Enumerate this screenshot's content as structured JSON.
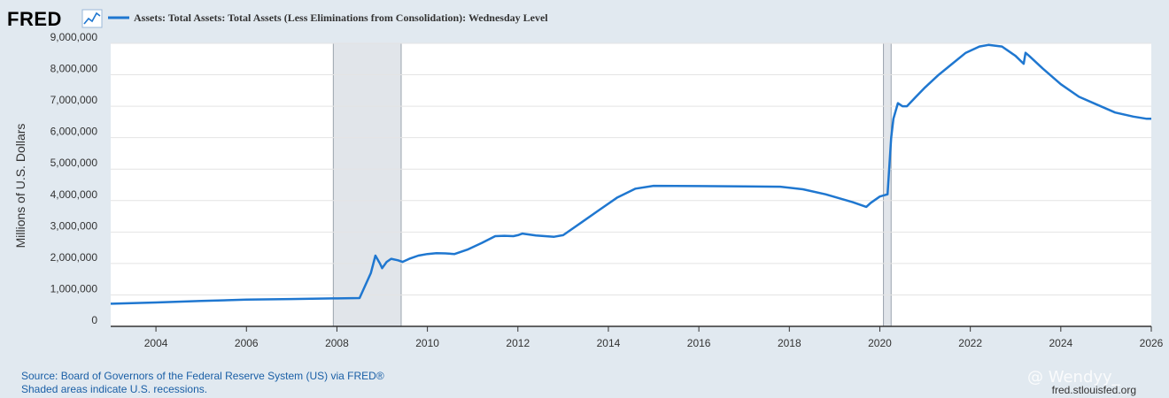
{
  "header": {
    "logo_text": "FRED",
    "logo_icon": "line-graph-icon",
    "legend_label": "Assets: Total Assets: Total Assets (Less Eliminations from Consolidation): Wednesday Level"
  },
  "footer": {
    "source": "Source: Board of Governors of the Federal Reserve System (US) via FRED®",
    "recession_note": "Shaded areas indicate U.S. recessions.",
    "url": "fred.stlouisfed.org",
    "watermark": "@ Wendyy_"
  },
  "colors": {
    "line": "#1f77d0",
    "recession": "#e1e5ea",
    "background": "#e1e9f0",
    "plot": "#ffffff",
    "link": "#1a5fa6"
  },
  "chart_data": {
    "type": "line",
    "title": "",
    "xlabel": "",
    "ylabel": "Millions of U.S. Dollars",
    "xlim": [
      2003.0,
      2026.0
    ],
    "ylim": [
      0,
      9000000
    ],
    "yticks": [
      0,
      1000000,
      2000000,
      3000000,
      4000000,
      5000000,
      6000000,
      7000000,
      8000000,
      9000000
    ],
    "ytick_labels": [
      "0",
      "1,000,000",
      "2,000,000",
      "3,000,000",
      "4,000,000",
      "5,000,000",
      "6,000,000",
      "7,000,000",
      "8,000,000",
      "9,000,000"
    ],
    "xticks": [
      2004,
      2006,
      2008,
      2010,
      2012,
      2014,
      2016,
      2018,
      2020,
      2022,
      2024,
      2026
    ],
    "xtick_labels": [
      "2004",
      "2006",
      "2008",
      "2010",
      "2012",
      "2014",
      "2016",
      "2018",
      "2020",
      "2022",
      "2024",
      "2026"
    ],
    "grid": true,
    "recessions": [
      [
        2007.92,
        2009.42
      ],
      [
        2020.08,
        2020.25
      ]
    ],
    "series": [
      {
        "name": "Assets: Total Assets: Total Assets (Less Eliminations from Consolidation): Wednesday Level",
        "x": [
          2003.0,
          2004.0,
          2005.0,
          2006.0,
          2007.0,
          2007.9,
          2008.5,
          2008.75,
          2008.85,
          2008.95,
          2009.0,
          2009.1,
          2009.2,
          2009.35,
          2009.45,
          2009.6,
          2009.8,
          2010.0,
          2010.2,
          2010.4,
          2010.6,
          2010.9,
          2011.2,
          2011.5,
          2011.7,
          2011.9,
          2012.0,
          2012.1,
          2012.4,
          2012.8,
          2013.0,
          2013.4,
          2013.8,
          2014.2,
          2014.6,
          2015.0,
          2016.0,
          2017.0,
          2017.8,
          2018.3,
          2018.8,
          2019.4,
          2019.7,
          2019.8,
          2020.0,
          2020.17,
          2020.25,
          2020.3,
          2020.4,
          2020.5,
          2020.6,
          2020.8,
          2021.0,
          2021.3,
          2021.6,
          2021.9,
          2022.2,
          2022.4,
          2022.7,
          2023.0,
          2023.18,
          2023.22,
          2023.3,
          2023.6,
          2024.0,
          2024.4,
          2024.8,
          2025.2,
          2025.6,
          2025.9,
          2026.0
        ],
        "values": [
          720000,
          760000,
          810000,
          850000,
          870000,
          890000,
          900000,
          1700000,
          2250000,
          2000000,
          1850000,
          2050000,
          2150000,
          2100000,
          2050000,
          2150000,
          2250000,
          2300000,
          2330000,
          2320000,
          2300000,
          2450000,
          2650000,
          2870000,
          2880000,
          2870000,
          2900000,
          2950000,
          2890000,
          2850000,
          2900000,
          3300000,
          3700000,
          4100000,
          4380000,
          4470000,
          4460000,
          4450000,
          4440000,
          4360000,
          4200000,
          3950000,
          3800000,
          3930000,
          4130000,
          4200000,
          6000000,
          6600000,
          7100000,
          7000000,
          7000000,
          7300000,
          7600000,
          8000000,
          8350000,
          8700000,
          8900000,
          8950000,
          8900000,
          8600000,
          8350000,
          8700000,
          8600000,
          8200000,
          7700000,
          7300000,
          7050000,
          6800000,
          6670000,
          6600000,
          6600000
        ]
      }
    ]
  }
}
